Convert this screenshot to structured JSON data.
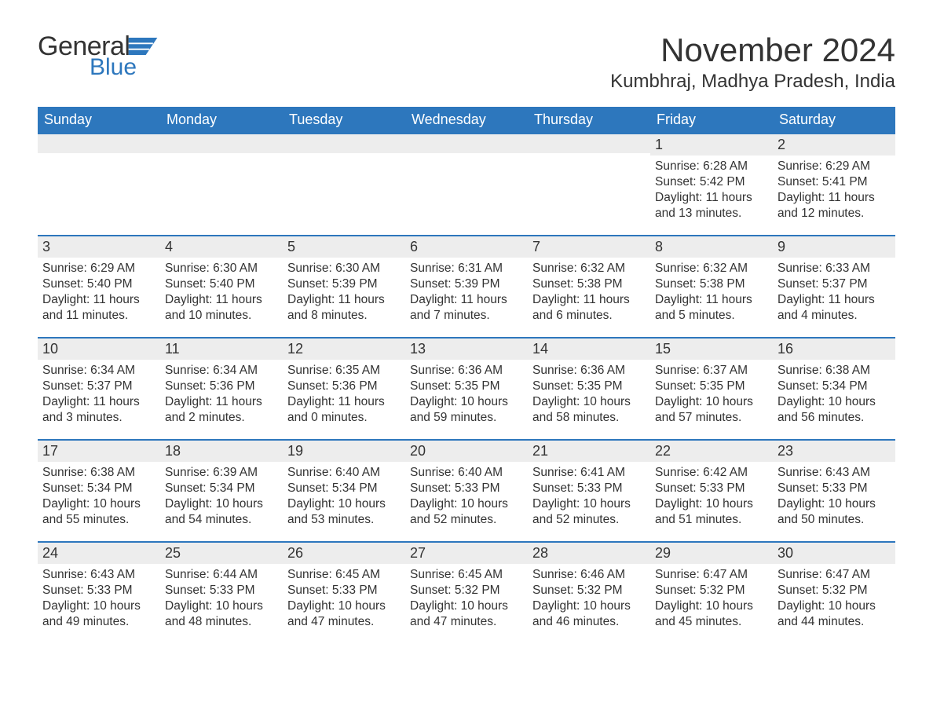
{
  "brand": {
    "name_main": "General",
    "name_sub": "Blue",
    "flag_color": "#2d77bd"
  },
  "title": {
    "month": "November 2024",
    "location": "Kumbhraj, Madhya Pradesh, India"
  },
  "colors": {
    "header_bg": "#2d77bd",
    "header_text": "#ffffff",
    "daybar_bg": "#ededed",
    "rule": "#2d77bd",
    "text": "#333333",
    "background": "#ffffff"
  },
  "weekdays": [
    "Sunday",
    "Monday",
    "Tuesday",
    "Wednesday",
    "Thursday",
    "Friday",
    "Saturday"
  ],
  "weeks": [
    [
      null,
      null,
      null,
      null,
      null,
      {
        "day": "1",
        "sunrise": "Sunrise: 6:28 AM",
        "sunset": "Sunset: 5:42 PM",
        "daylight1": "Daylight: 11 hours",
        "daylight2": "and 13 minutes."
      },
      {
        "day": "2",
        "sunrise": "Sunrise: 6:29 AM",
        "sunset": "Sunset: 5:41 PM",
        "daylight1": "Daylight: 11 hours",
        "daylight2": "and 12 minutes."
      }
    ],
    [
      {
        "day": "3",
        "sunrise": "Sunrise: 6:29 AM",
        "sunset": "Sunset: 5:40 PM",
        "daylight1": "Daylight: 11 hours",
        "daylight2": "and 11 minutes."
      },
      {
        "day": "4",
        "sunrise": "Sunrise: 6:30 AM",
        "sunset": "Sunset: 5:40 PM",
        "daylight1": "Daylight: 11 hours",
        "daylight2": "and 10 minutes."
      },
      {
        "day": "5",
        "sunrise": "Sunrise: 6:30 AM",
        "sunset": "Sunset: 5:39 PM",
        "daylight1": "Daylight: 11 hours",
        "daylight2": "and 8 minutes."
      },
      {
        "day": "6",
        "sunrise": "Sunrise: 6:31 AM",
        "sunset": "Sunset: 5:39 PM",
        "daylight1": "Daylight: 11 hours",
        "daylight2": "and 7 minutes."
      },
      {
        "day": "7",
        "sunrise": "Sunrise: 6:32 AM",
        "sunset": "Sunset: 5:38 PM",
        "daylight1": "Daylight: 11 hours",
        "daylight2": "and 6 minutes."
      },
      {
        "day": "8",
        "sunrise": "Sunrise: 6:32 AM",
        "sunset": "Sunset: 5:38 PM",
        "daylight1": "Daylight: 11 hours",
        "daylight2": "and 5 minutes."
      },
      {
        "day": "9",
        "sunrise": "Sunrise: 6:33 AM",
        "sunset": "Sunset: 5:37 PM",
        "daylight1": "Daylight: 11 hours",
        "daylight2": "and 4 minutes."
      }
    ],
    [
      {
        "day": "10",
        "sunrise": "Sunrise: 6:34 AM",
        "sunset": "Sunset: 5:37 PM",
        "daylight1": "Daylight: 11 hours",
        "daylight2": "and 3 minutes."
      },
      {
        "day": "11",
        "sunrise": "Sunrise: 6:34 AM",
        "sunset": "Sunset: 5:36 PM",
        "daylight1": "Daylight: 11 hours",
        "daylight2": "and 2 minutes."
      },
      {
        "day": "12",
        "sunrise": "Sunrise: 6:35 AM",
        "sunset": "Sunset: 5:36 PM",
        "daylight1": "Daylight: 11 hours",
        "daylight2": "and 0 minutes."
      },
      {
        "day": "13",
        "sunrise": "Sunrise: 6:36 AM",
        "sunset": "Sunset: 5:35 PM",
        "daylight1": "Daylight: 10 hours",
        "daylight2": "and 59 minutes."
      },
      {
        "day": "14",
        "sunrise": "Sunrise: 6:36 AM",
        "sunset": "Sunset: 5:35 PM",
        "daylight1": "Daylight: 10 hours",
        "daylight2": "and 58 minutes."
      },
      {
        "day": "15",
        "sunrise": "Sunrise: 6:37 AM",
        "sunset": "Sunset: 5:35 PM",
        "daylight1": "Daylight: 10 hours",
        "daylight2": "and 57 minutes."
      },
      {
        "day": "16",
        "sunrise": "Sunrise: 6:38 AM",
        "sunset": "Sunset: 5:34 PM",
        "daylight1": "Daylight: 10 hours",
        "daylight2": "and 56 minutes."
      }
    ],
    [
      {
        "day": "17",
        "sunrise": "Sunrise: 6:38 AM",
        "sunset": "Sunset: 5:34 PM",
        "daylight1": "Daylight: 10 hours",
        "daylight2": "and 55 minutes."
      },
      {
        "day": "18",
        "sunrise": "Sunrise: 6:39 AM",
        "sunset": "Sunset: 5:34 PM",
        "daylight1": "Daylight: 10 hours",
        "daylight2": "and 54 minutes."
      },
      {
        "day": "19",
        "sunrise": "Sunrise: 6:40 AM",
        "sunset": "Sunset: 5:34 PM",
        "daylight1": "Daylight: 10 hours",
        "daylight2": "and 53 minutes."
      },
      {
        "day": "20",
        "sunrise": "Sunrise: 6:40 AM",
        "sunset": "Sunset: 5:33 PM",
        "daylight1": "Daylight: 10 hours",
        "daylight2": "and 52 minutes."
      },
      {
        "day": "21",
        "sunrise": "Sunrise: 6:41 AM",
        "sunset": "Sunset: 5:33 PM",
        "daylight1": "Daylight: 10 hours",
        "daylight2": "and 52 minutes."
      },
      {
        "day": "22",
        "sunrise": "Sunrise: 6:42 AM",
        "sunset": "Sunset: 5:33 PM",
        "daylight1": "Daylight: 10 hours",
        "daylight2": "and 51 minutes."
      },
      {
        "day": "23",
        "sunrise": "Sunrise: 6:43 AM",
        "sunset": "Sunset: 5:33 PM",
        "daylight1": "Daylight: 10 hours",
        "daylight2": "and 50 minutes."
      }
    ],
    [
      {
        "day": "24",
        "sunrise": "Sunrise: 6:43 AM",
        "sunset": "Sunset: 5:33 PM",
        "daylight1": "Daylight: 10 hours",
        "daylight2": "and 49 minutes."
      },
      {
        "day": "25",
        "sunrise": "Sunrise: 6:44 AM",
        "sunset": "Sunset: 5:33 PM",
        "daylight1": "Daylight: 10 hours",
        "daylight2": "and 48 minutes."
      },
      {
        "day": "26",
        "sunrise": "Sunrise: 6:45 AM",
        "sunset": "Sunset: 5:33 PM",
        "daylight1": "Daylight: 10 hours",
        "daylight2": "and 47 minutes."
      },
      {
        "day": "27",
        "sunrise": "Sunrise: 6:45 AM",
        "sunset": "Sunset: 5:32 PM",
        "daylight1": "Daylight: 10 hours",
        "daylight2": "and 47 minutes."
      },
      {
        "day": "28",
        "sunrise": "Sunrise: 6:46 AM",
        "sunset": "Sunset: 5:32 PM",
        "daylight1": "Daylight: 10 hours",
        "daylight2": "and 46 minutes."
      },
      {
        "day": "29",
        "sunrise": "Sunrise: 6:47 AM",
        "sunset": "Sunset: 5:32 PM",
        "daylight1": "Daylight: 10 hours",
        "daylight2": "and 45 minutes."
      },
      {
        "day": "30",
        "sunrise": "Sunrise: 6:47 AM",
        "sunset": "Sunset: 5:32 PM",
        "daylight1": "Daylight: 10 hours",
        "daylight2": "and 44 minutes."
      }
    ]
  ]
}
